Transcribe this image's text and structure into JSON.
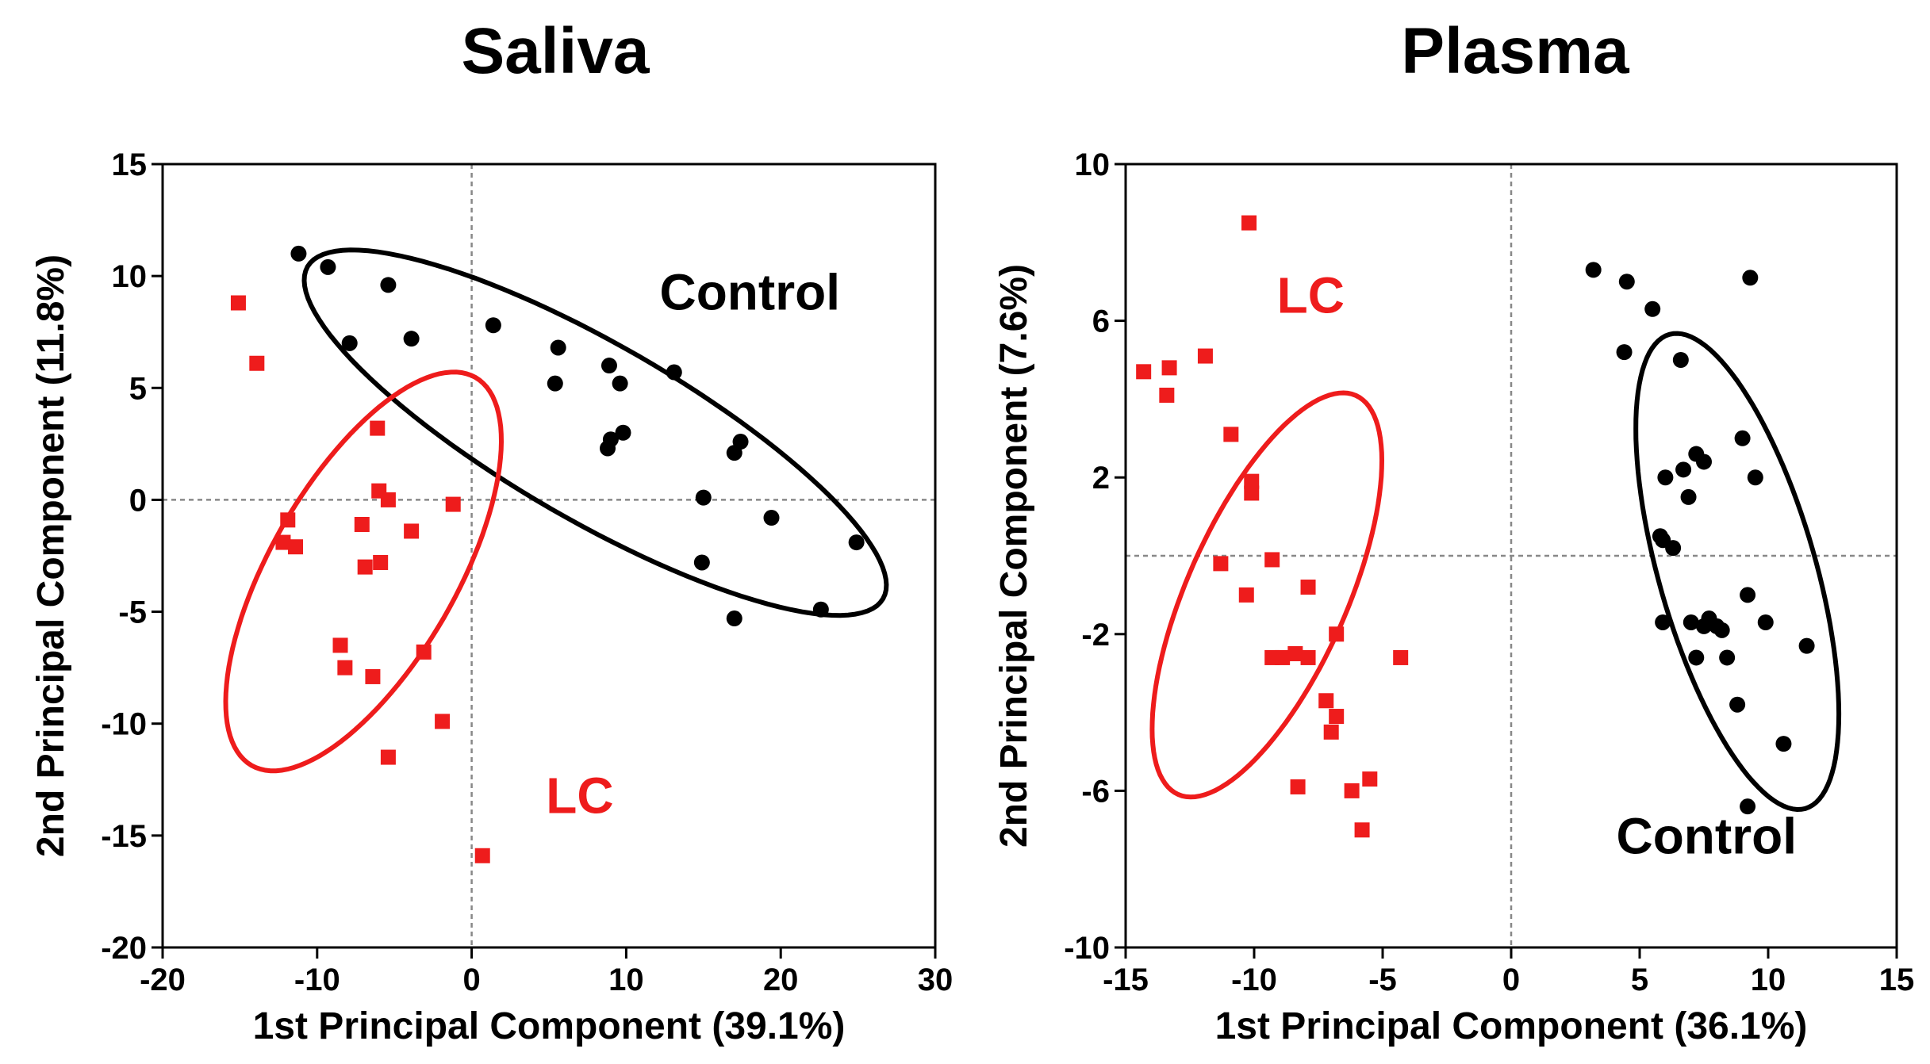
{
  "chart_data": [
    {
      "type": "scatter",
      "title": "Saliva",
      "xlabel": "1st Principal Component (39.1%)",
      "ylabel": "2nd Principal Component (11.8%)",
      "xlim": [
        -20,
        30
      ],
      "ylim": [
        -20,
        15
      ],
      "xticks": [
        -20,
        -10,
        0,
        10,
        20,
        30
      ],
      "yticks": [
        -20,
        -15,
        -10,
        -5,
        0,
        5,
        10,
        15
      ],
      "reference_lines": {
        "x": 0,
        "y": 0
      },
      "grid": false,
      "series": [
        {
          "name": "Control",
          "marker": "circle",
          "color": "#000000",
          "label_pos": [
            18,
            8.5
          ],
          "ellipse": {
            "cx": 8,
            "cy": 3,
            "rx": 21.5,
            "ry": 5.7,
            "angle_deg": -30
          },
          "points": [
            [
              -11.2,
              11.0
            ],
            [
              -9.3,
              10.4
            ],
            [
              -5.4,
              9.6
            ],
            [
              -3.9,
              7.2
            ],
            [
              -7.9,
              7.0
            ],
            [
              1.4,
              7.8
            ],
            [
              5.6,
              6.8
            ],
            [
              5.4,
              5.2
            ],
            [
              8.9,
              6.0
            ],
            [
              9.6,
              5.2
            ],
            [
              13.1,
              5.7
            ],
            [
              9.8,
              3.0
            ],
            [
              9.0,
              2.7
            ],
            [
              8.8,
              2.3
            ],
            [
              17.4,
              2.6
            ],
            [
              17.0,
              2.1
            ],
            [
              15.0,
              0.1
            ],
            [
              19.4,
              -0.8
            ],
            [
              24.9,
              -1.9
            ],
            [
              14.9,
              -2.8
            ],
            [
              22.6,
              -4.9
            ],
            [
              17.0,
              -5.3
            ]
          ]
        },
        {
          "name": "LC",
          "marker": "square",
          "color": "#ee1c1c",
          "label_pos": [
            7,
            -14
          ],
          "ellipse": {
            "cx": -7,
            "cy": -3.2,
            "rx": 14.5,
            "ry": 6,
            "angle_deg": 60
          },
          "points": [
            [
              -15.1,
              8.8
            ],
            [
              -13.9,
              6.1
            ],
            [
              -6.1,
              3.2
            ],
            [
              -6.0,
              0.4
            ],
            [
              -5.4,
              0.0
            ],
            [
              -1.2,
              -0.2
            ],
            [
              -11.9,
              -0.9
            ],
            [
              -7.1,
              -1.1
            ],
            [
              -3.9,
              -1.4
            ],
            [
              -12.2,
              -1.9
            ],
            [
              -11.4,
              -2.1
            ],
            [
              -5.9,
              -2.8
            ],
            [
              -6.9,
              -3.0
            ],
            [
              -8.5,
              -6.5
            ],
            [
              -3.1,
              -6.8
            ],
            [
              -8.2,
              -7.5
            ],
            [
              -6.4,
              -7.9
            ],
            [
              -1.9,
              -9.9
            ],
            [
              -5.4,
              -11.5
            ],
            [
              0.7,
              -15.9
            ]
          ]
        }
      ]
    },
    {
      "type": "scatter",
      "title": "Plasma",
      "xlabel": "1st Principal Component (36.1%)",
      "ylabel": "2nd Principal Component (7.6%)",
      "xlim": [
        -15,
        15
      ],
      "ylim": [
        -10,
        10
      ],
      "xticks": [
        -15,
        -10,
        -5,
        0,
        5,
        10,
        15
      ],
      "yticks": [
        -10,
        -6,
        -2,
        2,
        6,
        10
      ],
      "reference_lines": {
        "x": 0,
        "y": 0
      },
      "grid": false,
      "series": [
        {
          "name": "LC",
          "marker": "square",
          "color": "#ee1c1c",
          "label_pos": [
            -7.8,
            6.2
          ],
          "ellipse": {
            "cx": -9.5,
            "cy": -1.0,
            "rx": 8.5,
            "ry": 3.1,
            "angle_deg": 66
          },
          "points": [
            [
              -10.2,
              8.5
            ],
            [
              -14.3,
              4.7
            ],
            [
              -13.3,
              4.8
            ],
            [
              -11.9,
              5.1
            ],
            [
              -13.4,
              4.1
            ],
            [
              -10.9,
              3.1
            ],
            [
              -10.1,
              1.9
            ],
            [
              -10.1,
              1.6
            ],
            [
              -11.3,
              -0.2
            ],
            [
              -9.3,
              -0.1
            ],
            [
              -10.3,
              -1.0
            ],
            [
              -7.9,
              -0.8
            ],
            [
              -9.3,
              -2.6
            ],
            [
              -8.9,
              -2.6
            ],
            [
              -8.4,
              -2.5
            ],
            [
              -7.9,
              -2.6
            ],
            [
              -6.8,
              -2.0
            ],
            [
              -4.3,
              -2.6
            ],
            [
              -7.2,
              -3.7
            ],
            [
              -6.8,
              -4.1
            ],
            [
              -7.0,
              -4.5
            ],
            [
              -8.3,
              -5.9
            ],
            [
              -6.2,
              -6.0
            ],
            [
              -5.5,
              -5.7
            ],
            [
              -5.8,
              -7.0
            ]
          ]
        },
        {
          "name": "Control",
          "marker": "circle",
          "color": "#000000",
          "label_pos": [
            7.6,
            -7.6
          ],
          "ellipse": {
            "cx": 8.8,
            "cy": -0.4,
            "rx": 9.6,
            "ry": 3.05,
            "angle_deg": -74
          },
          "points": [
            [
              3.2,
              7.3
            ],
            [
              4.5,
              7.0
            ],
            [
              5.5,
              6.3
            ],
            [
              9.3,
              7.1
            ],
            [
              4.4,
              5.2
            ],
            [
              6.6,
              5.0
            ],
            [
              9.0,
              3.0
            ],
            [
              7.2,
              2.6
            ],
            [
              6.7,
              2.2
            ],
            [
              7.5,
              2.4
            ],
            [
              6.0,
              2.0
            ],
            [
              9.5,
              2.0
            ],
            [
              6.9,
              1.5
            ],
            [
              5.8,
              0.5
            ],
            [
              5.9,
              0.4
            ],
            [
              6.3,
              0.2
            ],
            [
              9.2,
              -1.0
            ],
            [
              5.9,
              -1.7
            ],
            [
              7.7,
              -1.6
            ],
            [
              7.0,
              -1.7
            ],
            [
              7.5,
              -1.8
            ],
            [
              8.0,
              -1.8
            ],
            [
              8.2,
              -1.9
            ],
            [
              9.9,
              -1.7
            ],
            [
              11.5,
              -2.3
            ],
            [
              7.2,
              -2.6
            ],
            [
              8.4,
              -2.6
            ],
            [
              8.8,
              -3.8
            ],
            [
              10.6,
              -4.8
            ],
            [
              9.2,
              -6.4
            ]
          ]
        }
      ]
    }
  ]
}
